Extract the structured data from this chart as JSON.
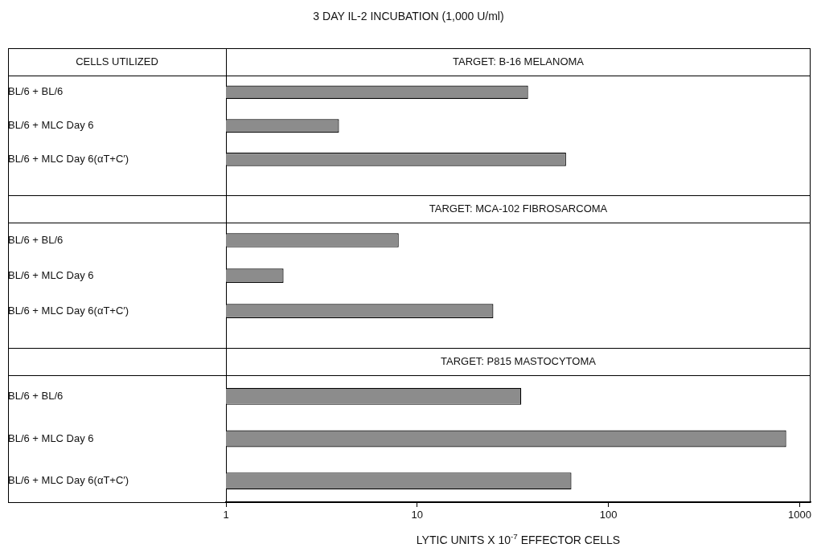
{
  "chart_data": [
    {
      "type": "bar",
      "orientation": "horizontal",
      "title": "3 DAY IL-2 INCUBATION (1,000 U/ml)",
      "subtitle": "TARGET: B-16 MELANOMA",
      "ylabel": "CELLS UTILIZED",
      "categories": [
        "BL/6 + BL/6",
        "BL/6 + MLC Day 6",
        "BL/6 + MLC Day 6(αT+C′)"
      ],
      "values": [
        38,
        3.9,
        60
      ],
      "color": "#8c8c8c",
      "log": "x",
      "xlim": [
        1,
        1140
      ],
      "xticks": [
        1,
        10,
        100,
        1000
      ],
      "tick_labels": "y"
    },
    {
      "type": "bar",
      "orientation": "horizontal",
      "subtitle": "TARGET: MCA-102 FIBROSARCOMA",
      "categories": [
        "BL/6 + BL/6",
        "BL/6 + MLC Day 6",
        "BL/6 + MLC Day 6(αT+C′)"
      ],
      "values": [
        8,
        2,
        25
      ],
      "color": "#8c8c8c",
      "log": "x",
      "xlim": [
        1,
        1140
      ],
      "xticks": [
        1,
        10,
        100,
        1000
      ],
      "tick_labels": "y"
    },
    {
      "type": "bar",
      "orientation": "horizontal",
      "subtitle": "TARGET: P815 MASTOCYTOMA",
      "xlabel": "LYTIC UNITS X 10$^{-7}$ EFFECTOR CELLS",
      "categories": [
        "BL/6 + BL/6",
        "BL/6 + MLC Day 6",
        "BL/6 + MLC Day 6(αT+C′)"
      ],
      "values": [
        35,
        850,
        64
      ],
      "color": "#8c8c8c",
      "log": "x",
      "xlim": [
        1,
        1140
      ],
      "xticks": [
        1,
        10,
        100,
        1000
      ]
    }
  ]
}
